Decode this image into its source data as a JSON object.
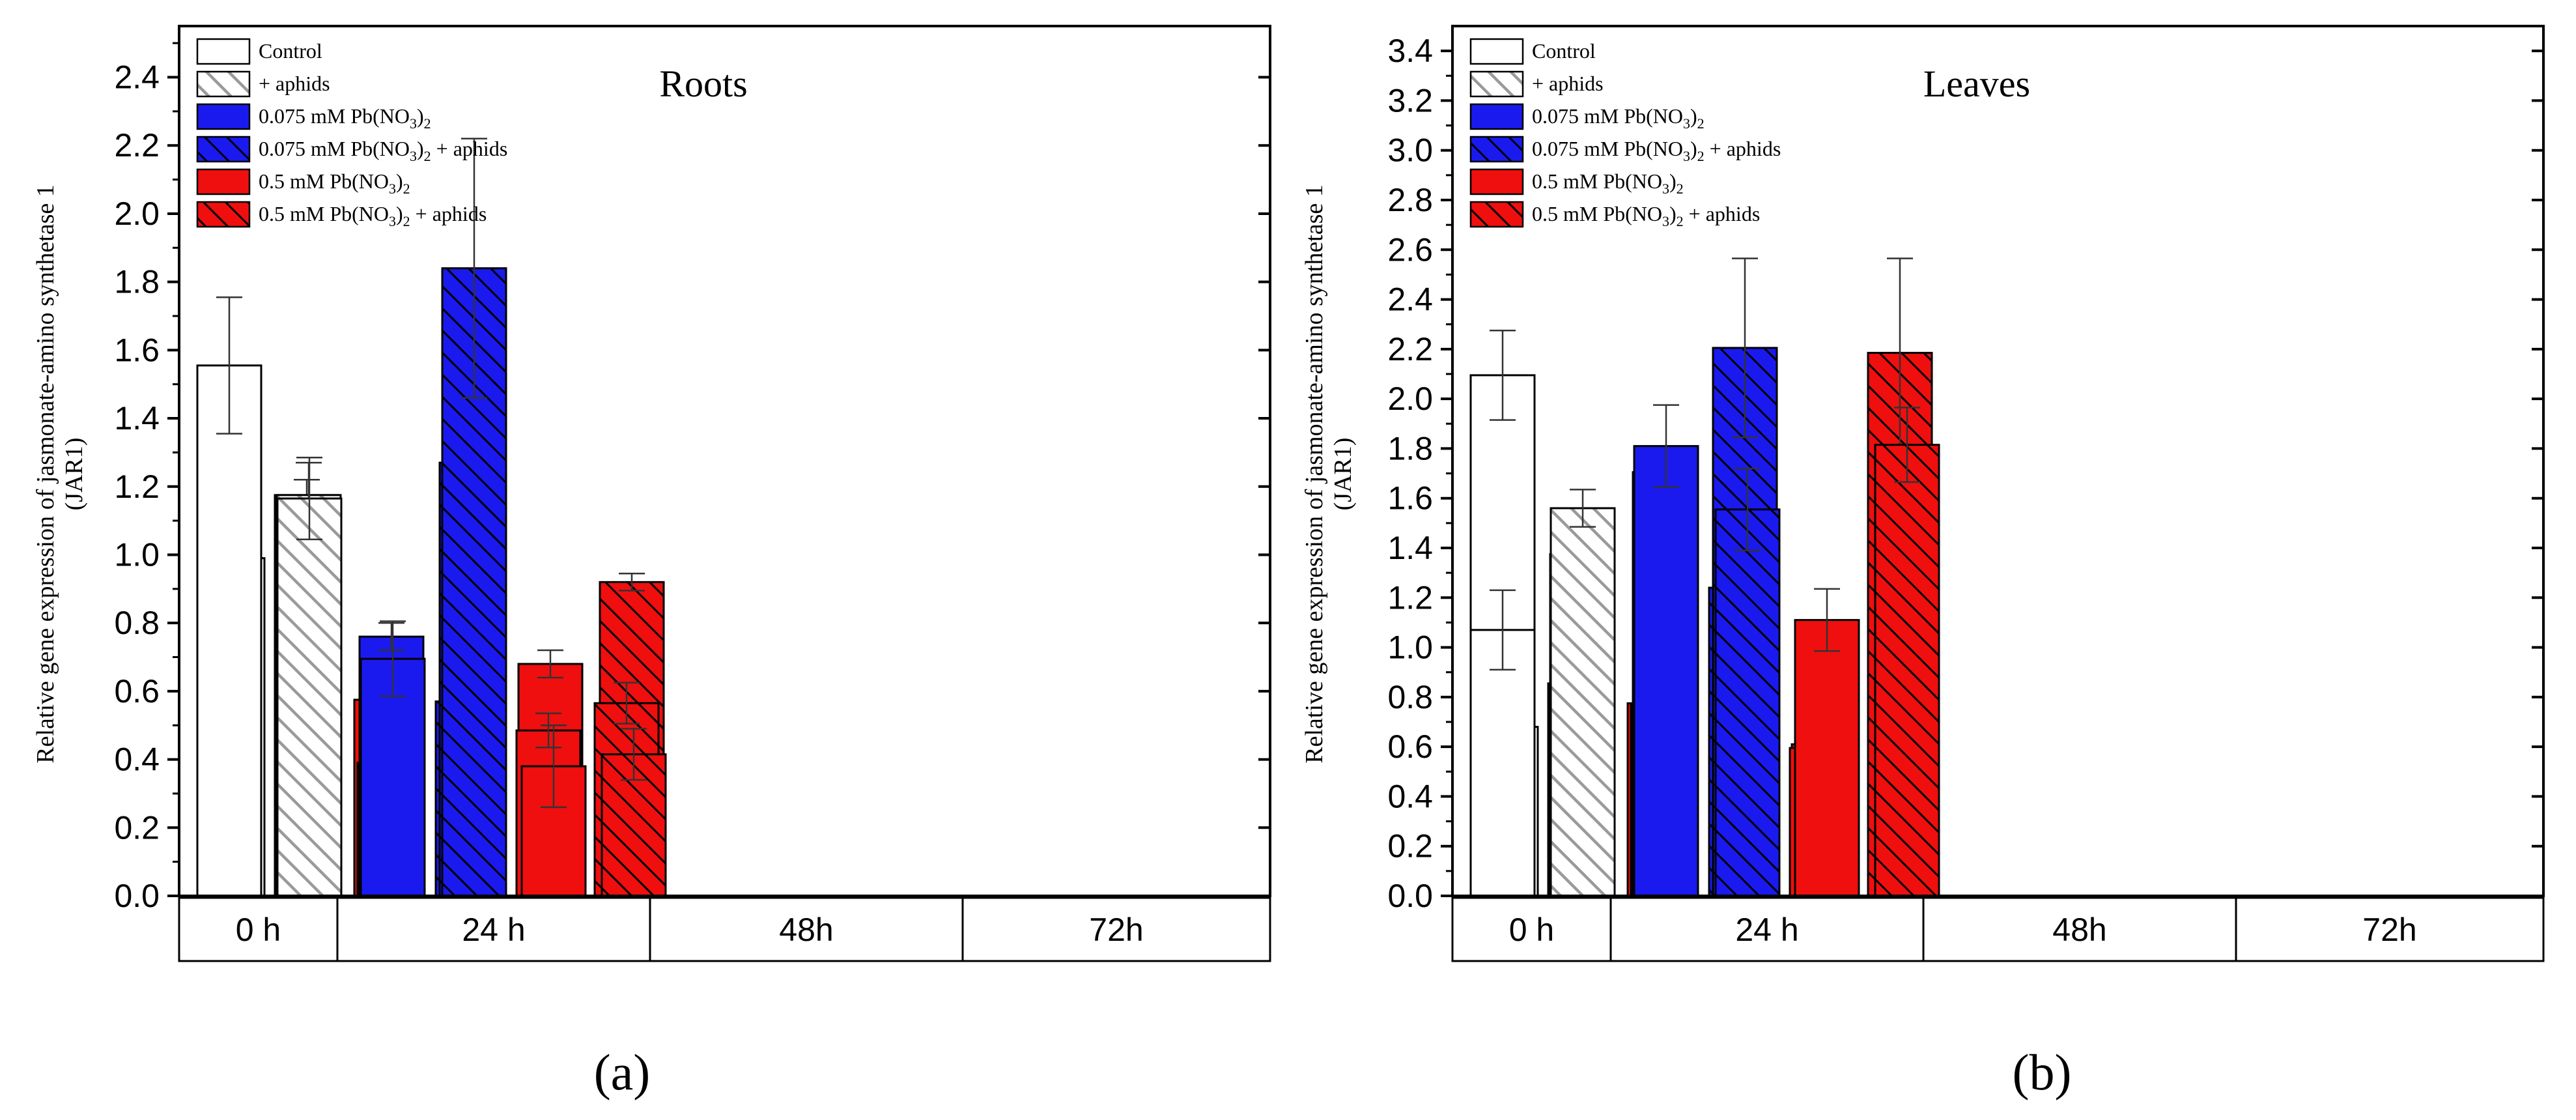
{
  "figure": {
    "panel_labels": [
      "(a)",
      "(b)"
    ],
    "y_axis_label_line1": "Relative gene expression of jasmonate-amino synthetase 1",
    "y_axis_label_line2": "(JAR1)",
    "group_labels": [
      "0 h",
      "24 h",
      "48h",
      "72h"
    ],
    "legend": [
      {
        "text": "Control",
        "fill": "#ffffff",
        "hatch": false
      },
      {
        "text": "+ aphids",
        "fill": "#ffffff",
        "hatch": true
      },
      {
        "text": "0.075 mM Pb(NO",
        "sub1": "3",
        "mid": ")",
        "sub2": "2",
        "after": "",
        "fill": "#1a1aef",
        "hatch": false
      },
      {
        "text": "0.075 mM Pb(NO",
        "sub1": "3",
        "mid": ")",
        "sub2": "2",
        "after": " +  aphids",
        "fill": "#1a1aef",
        "hatch": true
      },
      {
        "text": "0.5 mM Pb(NO",
        "sub1": "3",
        "mid": ")",
        "sub2": "2",
        "after": "",
        "fill": "#ef0f0f",
        "hatch": false
      },
      {
        "text": "0.5 mM Pb(NO",
        "sub1": "3",
        "mid": ")",
        "sub2": "2",
        "after": " + aphids",
        "fill": "#ef0f0f",
        "hatch": true
      }
    ],
    "colors": {
      "control": "#ffffff",
      "low_pb": "#1a1aef",
      "high_pb": "#ef0f0f",
      "hatch_control": "#9a9a9a",
      "hatch_dark": "#000000"
    }
  },
  "chart_data": [
    {
      "type": "bar",
      "title": "Roots",
      "ylabel": "Relative gene expression of jasmonate-amino synthetase 1 (JAR1)",
      "ylim": [
        0,
        2.55
      ],
      "yticks": [
        0.0,
        0.2,
        0.4,
        0.6,
        0.8,
        1.0,
        1.2,
        1.4,
        1.6,
        1.8,
        2.0,
        2.2,
        2.4
      ],
      "groups": [
        {
          "label": "0 h",
          "bars": [
            {
              "series": "Control",
              "value": 0.99,
              "err": 0.11
            },
            {
              "series": "0.075 mM Pb(NO3)2",
              "value": 0.59,
              "err": 0.065
            },
            {
              "series": "0.5 mM Pb(NO3)2",
              "value": 0.575,
              "err": 0.06
            }
          ]
        },
        {
          "label": "24 h",
          "bars": [
            {
              "series": "Control",
              "value": 0.41,
              "err": 0.015
            },
            {
              "series": "+ aphids",
              "value": 1.175,
              "err": 0.045
            },
            {
              "series": "0.075 mM Pb(NO3)2",
              "value": 0.39,
              "err": 0.035
            },
            {
              "series": "0.075 mM Pb(NO3)2 + aphids",
              "value": 0.57,
              "err": 0.015
            },
            {
              "series": "0.5 mM Pb(NO3)2",
              "value": 0.68,
              "err": 0.04
            },
            {
              "series": "0.5 mM Pb(NO3)2 + aphids",
              "value": 0.92,
              "err": 0.025
            }
          ]
        },
        {
          "label": "48h",
          "bars": [
            {
              "series": "Control",
              "value": 0.86,
              "err": 0.19
            },
            {
              "series": "+ aphids",
              "value": 1.175,
              "err": 0.095
            },
            {
              "series": "0.075 mM Pb(NO3)2",
              "value": 0.76,
              "err": 0.04
            },
            {
              "series": "0.075 mM Pb(NO3)2 + aphids",
              "value": 1.27,
              "err": 0.14
            },
            {
              "series": "0.5 mM Pb(NO3)2",
              "value": 0.485,
              "err": 0.05
            },
            {
              "series": "0.5 mM Pb(NO3)2 + aphids",
              "value": 0.565,
              "err": 0.06
            }
          ]
        },
        {
          "label": "72h",
          "bars": [
            {
              "series": "Control",
              "value": 1.555,
              "err": 0.2
            },
            {
              "series": "+ aphids",
              "value": 1.165,
              "err": 0.12
            },
            {
              "series": "0.075 mM Pb(NO3)2",
              "value": 0.695,
              "err": 0.11
            },
            {
              "series": "0.075 mM Pb(NO3)2 + aphids",
              "value": 1.84,
              "err": 0.38
            },
            {
              "series": "0.5 mM Pb(NO3)2",
              "value": 0.38,
              "err": 0.12
            },
            {
              "series": "0.5 mM Pb(NO3)2 + aphids",
              "value": 0.415,
              "err": 0.075
            }
          ]
        }
      ]
    },
    {
      "type": "bar",
      "title": "Leaves",
      "ylabel": "Relative gene expression of jasmonate-amino synthetase 1 (JAR1)",
      "ylim": [
        0,
        3.5
      ],
      "yticks": [
        0.0,
        0.2,
        0.4,
        0.6,
        0.8,
        1.0,
        1.2,
        1.4,
        1.6,
        1.8,
        2.0,
        2.2,
        2.4,
        2.6,
        2.8,
        3.0,
        3.2,
        3.4
      ],
      "groups": [
        {
          "label": "0 h",
          "bars": [
            {
              "series": "Control",
              "value": 0.68,
              "err": 0.14
            },
            {
              "series": "0.075 mM Pb(NO3)2",
              "value": 0.675,
              "err": 0.2
            },
            {
              "series": "0.5 mM Pb(NO3)2",
              "value": 0.775,
              "err": 0.14
            }
          ]
        },
        {
          "label": "24 h",
          "bars": [
            {
              "series": "Control",
              "value": 0.65,
              "err": 0.065
            },
            {
              "series": "+ aphids",
              "value": 0.855,
              "err": 0.06
            },
            {
              "series": "0.075 mM Pb(NO3)2",
              "value": 0.77,
              "err": 0.24
            },
            {
              "series": "0.075 mM Pb(NO3)2 + aphids",
              "value": 1.24,
              "err": 0.065
            },
            {
              "series": "0.5 mM Pb(NO3)2",
              "value": 0.61,
              "err": 0.05
            },
            {
              "series": "0.5 mM Pb(NO3)2 + aphids",
              "value": 1.76,
              "err": 0.13
            }
          ]
        },
        {
          "label": "48h",
          "bars": [
            {
              "series": "Control",
              "value": 2.095,
              "err": 0.18
            },
            {
              "series": "+ aphids",
              "value": 1.375,
              "err": 0.17
            },
            {
              "series": "0.075 mM Pb(NO3)2",
              "value": 1.705,
              "err": 0.015
            },
            {
              "series": "0.075 mM Pb(NO3)2 + aphids",
              "value": 2.205,
              "err": 0.36
            },
            {
              "series": "0.5 mM Pb(NO3)2",
              "value": 0.595,
              "err": 0.3
            },
            {
              "series": "0.5 mM Pb(NO3)2 + aphids",
              "value": 2.185,
              "err": 0.38
            }
          ]
        },
        {
          "label": "72h",
          "bars": [
            {
              "series": "Control",
              "value": 1.07,
              "err": 0.16
            },
            {
              "series": "+ aphids",
              "value": 1.56,
              "err": 0.075
            },
            {
              "series": "0.075 mM Pb(NO3)2",
              "value": 1.81,
              "err": 0.165
            },
            {
              "series": "0.075 mM Pb(NO3)2 + aphids",
              "value": 1.555,
              "err": 0.165
            },
            {
              "series": "0.5 mM Pb(NO3)2",
              "value": 1.11,
              "err": 0.125
            },
            {
              "series": "0.5 mM Pb(NO3)2 + aphids",
              "value": 1.815,
              "err": 0.15
            }
          ]
        }
      ]
    }
  ]
}
